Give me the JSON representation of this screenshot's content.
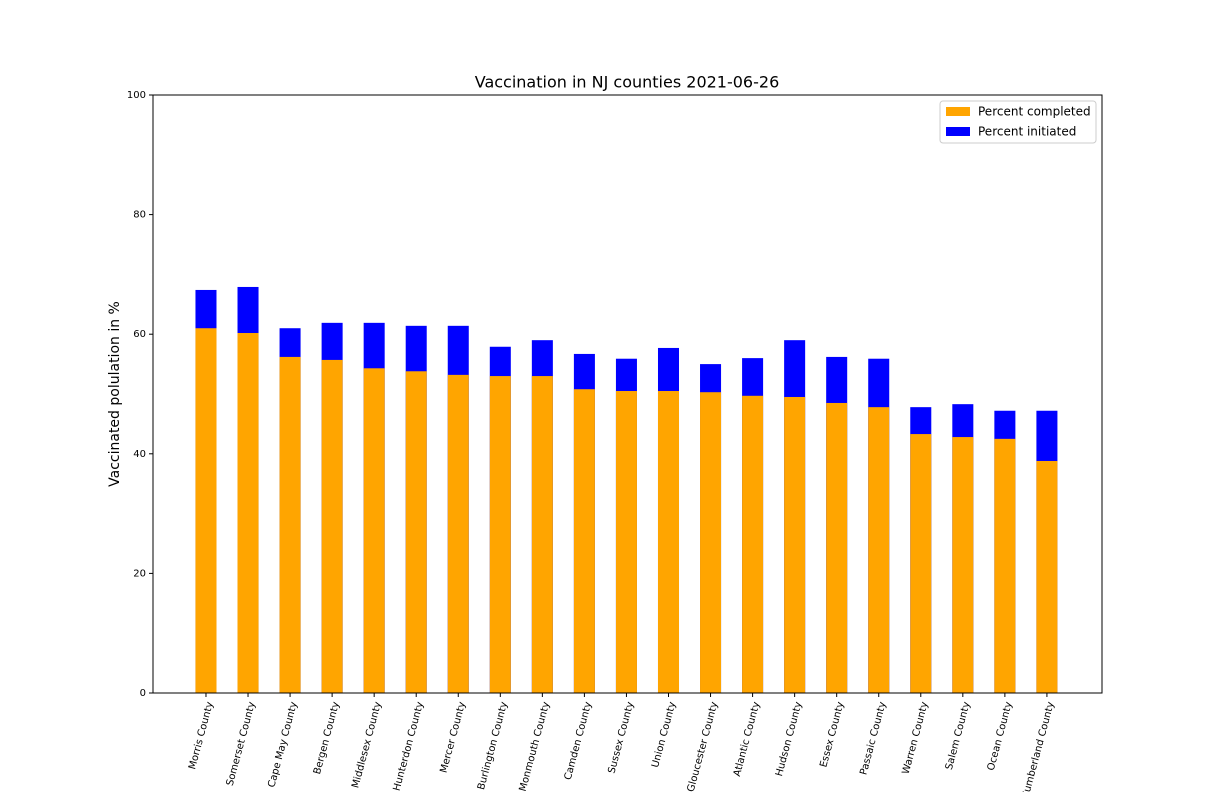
{
  "chart_data": {
    "type": "bar",
    "title": "Vaccination in NJ counties   2021-06-26",
    "y_label": "Vaccinated polulation in %",
    "categories": [
      "Morris County",
      "Somerset County",
      "Cape May County",
      "Bergen County",
      "Middlesex County",
      "Hunterdon County",
      "Mercer County",
      "Burlington County",
      "Monmouth County",
      "Camden County",
      "Sussex County",
      "Union County",
      "Gloucester County",
      "Atlantic County",
      "Hudson County",
      "Essex County",
      "Passaic County",
      "Warren County",
      "Salem County",
      "Ocean County",
      "Cumberland County"
    ],
    "series": [
      {
        "name": "Percent completed",
        "color": "#ffa500",
        "values": [
          61.0,
          60.2,
          56.2,
          55.7,
          54.3,
          53.8,
          53.2,
          53.0,
          53.0,
          50.8,
          50.5,
          50.5,
          50.3,
          49.7,
          49.5,
          48.5,
          47.8,
          43.3,
          42.8,
          42.5,
          38.8
        ]
      },
      {
        "name": "Percent initiated",
        "color": "#0000ff",
        "values": [
          67.4,
          67.9,
          61.0,
          61.9,
          61.9,
          61.4,
          61.4,
          57.9,
          59.0,
          56.7,
          55.9,
          57.7,
          55.0,
          56.0,
          59.0,
          56.2,
          55.9,
          47.8,
          48.3,
          47.2,
          47.2
        ]
      }
    ],
    "ylim": [
      0,
      100
    ],
    "yticks": [
      0,
      20,
      40,
      60,
      80,
      100
    ],
    "legend": "upper right"
  }
}
